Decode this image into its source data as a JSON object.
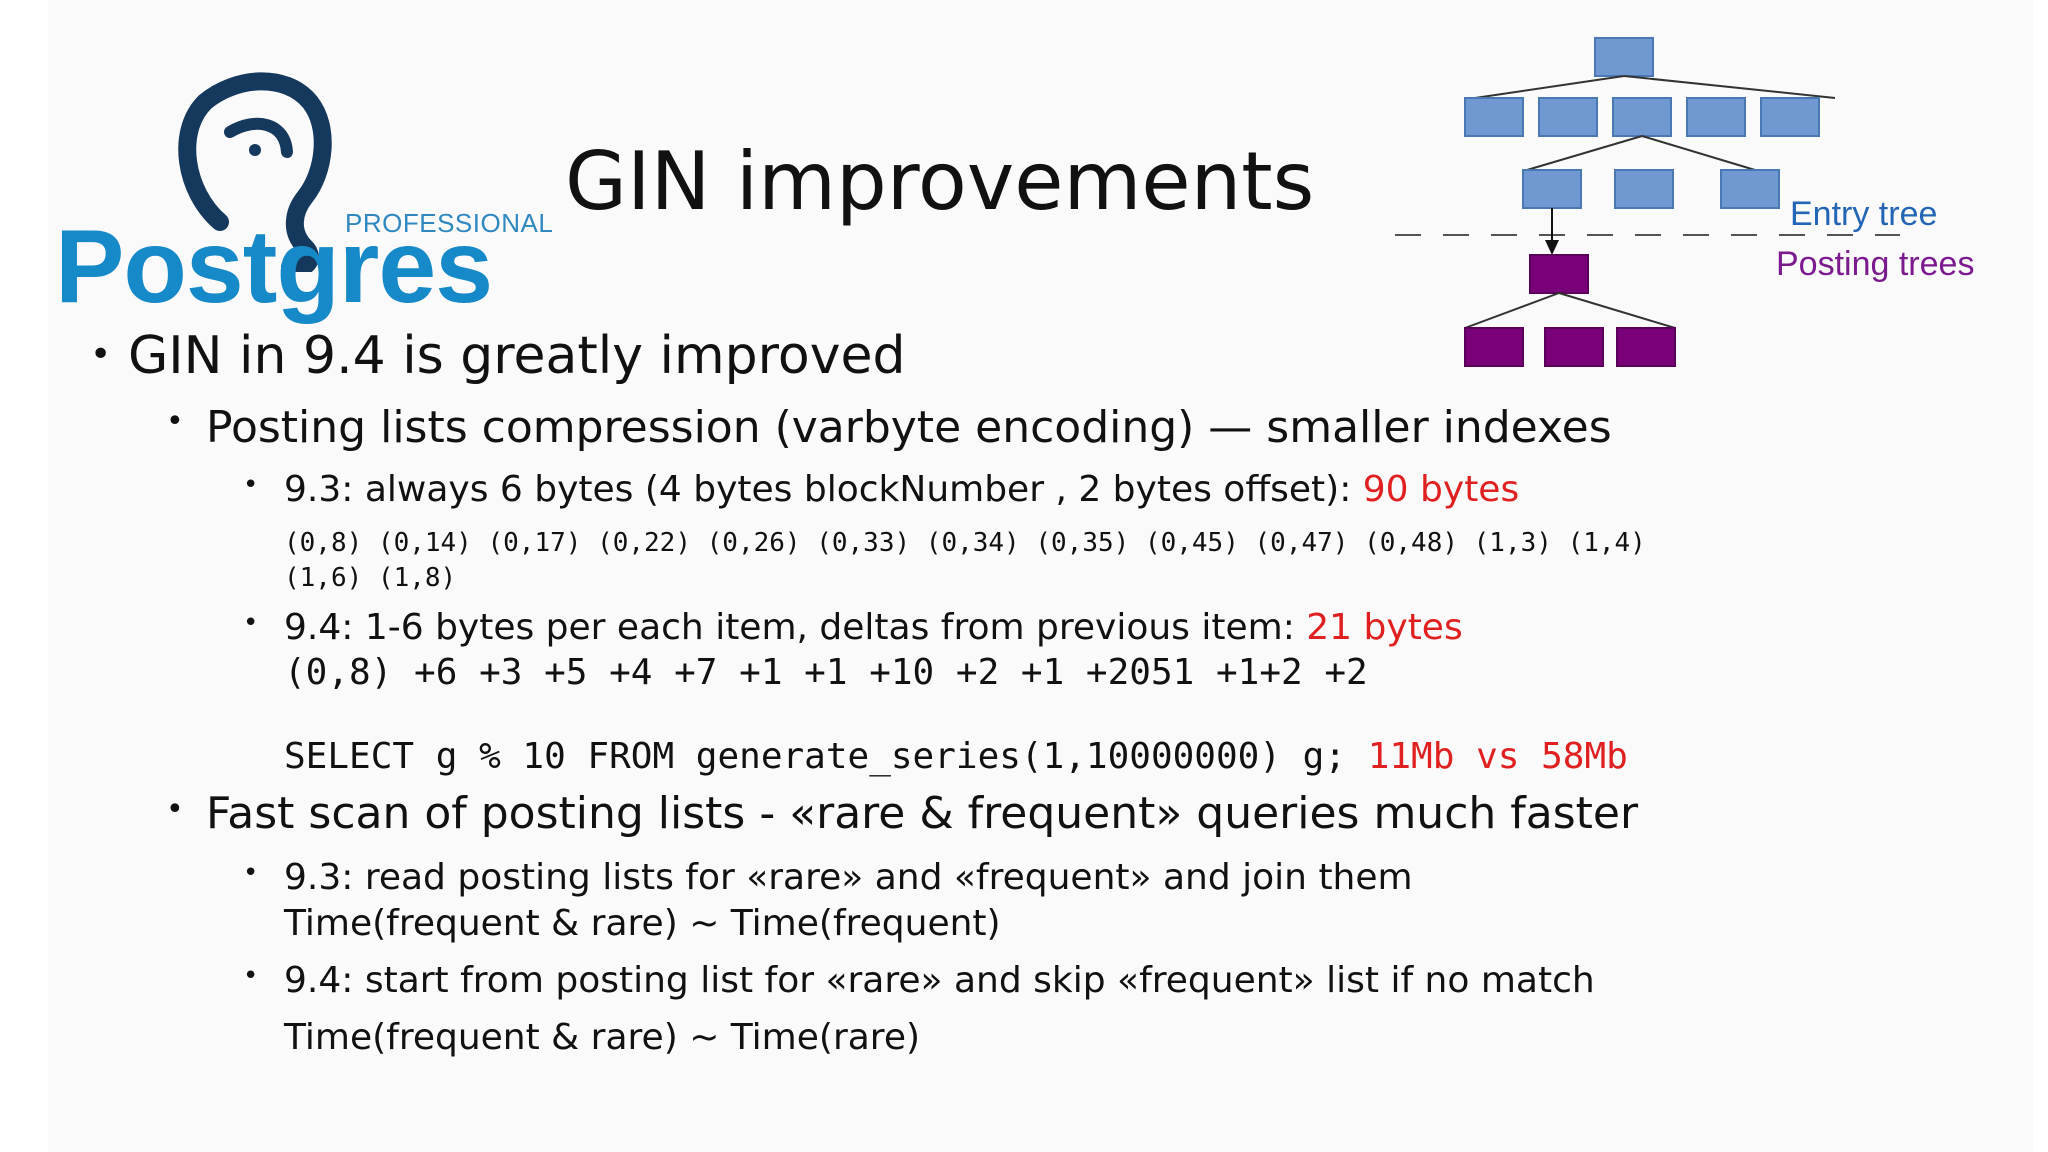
{
  "slide": {
    "title": "GIN improvements",
    "logo": {
      "top_text": "PROFESSIONAL",
      "word": "Postgres"
    },
    "diagram": {
      "label_entry": "Entry tree",
      "label_posting": "Posting trees",
      "colors": {
        "entry": "#6f99d0",
        "posting": "#7a007a",
        "entry_label": "#2266b5",
        "posting_label": "#7b1a8e"
      }
    },
    "bullets": {
      "l1": "GIN in 9.4 is greatly improved",
      "l2a": "Posting lists compression (varbyte encoding) — smaller indexes",
      "b93_text": "9.3:  always 6 bytes (4 bytes  blockNumber , 2 bytes offset): ",
      "b93_red": "90 bytes",
      "tids_line1": "(0,8) (0,14) (0,17) (0,22) (0,26) (0,33) (0,34) (0,35) (0,45) (0,47) (0,48) (1,3) (1,4)",
      "tids_line2": "(1,6) (1,8)",
      "b94_text": "9.4: 1-6 bytes per each item, deltas from previous item: ",
      "b94_red": "21 bytes",
      "deltas": "(0,8) +6 +3 +5 +4 +7 +1 +1 +10 +2 +1 +2051 +1+2 +2",
      "select_text": "SELECT  g % 10 FROM  generate_series(1,10000000) g; ",
      "select_red": "11Mb vs 58Mb",
      "l2b": " Fast scan of posting lists -   «rare & frequent» queries much faster",
      "fs93_line1": "9.3: read posting lists for «rare» and «frequent» and join them",
      "fs93_line2": "Time(frequent & rare) ~ Time(frequent)",
      "fs94_line1": "9.4: start from posting list for «rare» and skip «frequent» list if no match",
      "fs94_line2": "Time(frequent & rare) ~ Time(rare)"
    },
    "colors": {
      "accent_red": "#e02020",
      "logo_blue": "#1689c8",
      "text": "#111111"
    }
  }
}
